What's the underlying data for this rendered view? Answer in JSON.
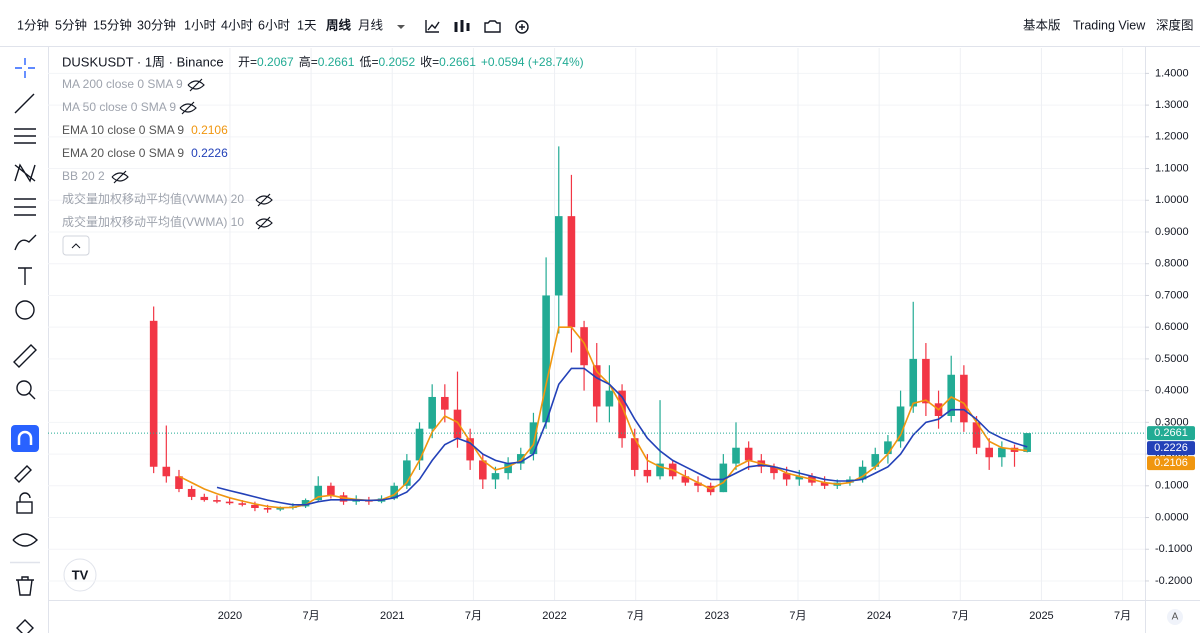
{
  "toolbar": {
    "intervals": [
      "1分钟",
      "5分钟",
      "15分钟",
      "30分钟",
      "1小时",
      "4小时",
      "6小时",
      "1天",
      "周线",
      "月线"
    ],
    "active": 8,
    "views": [
      "基本版",
      "Trading View",
      "深度图"
    ]
  },
  "chart_data": {
    "type": "candlestick",
    "title": "DUSKUSDT · 1周 · Binance",
    "ohlc_labels": [
      "开=",
      "高=",
      "低=",
      "收="
    ],
    "change": "+0.0594 (+28.74%)",
    "hidden_indicators": [
      "MA 200 close 0 SMA 9",
      "MA 50 close 0 SMA 9",
      "BB 20 2",
      "成交量加权移动平均值(VWMA) 20",
      "成交量加权移动平均值(VWMA) 10"
    ],
    "up_color": "#22ab94",
    "down_color": "#f23645",
    "x": [
      2019.53,
      2019.608,
      2019.686,
      2019.764,
      2019.842,
      2019.92,
      2019.998,
      2020.076,
      2020.154,
      2020.232,
      2020.31,
      2020.388,
      2020.466,
      2020.544,
      2020.622,
      2020.7,
      2020.778,
      2020.856,
      2020.934,
      2021.012,
      2021.09,
      2021.168,
      2021.246,
      2021.324,
      2021.402,
      2021.48,
      2021.558,
      2021.636,
      2021.714,
      2021.792,
      2021.87,
      2021.948,
      2022.026,
      2022.104,
      2022.182,
      2022.26,
      2022.338,
      2022.416,
      2022.494,
      2022.572,
      2022.65,
      2022.728,
      2022.806,
      2022.884,
      2022.962,
      2023.04,
      2023.118,
      2023.196,
      2023.274,
      2023.352,
      2023.43,
      2023.508,
      2023.586,
      2023.664,
      2023.742,
      2023.82,
      2023.898,
      2023.976,
      2024.054,
      2024.132,
      2024.21,
      2024.288,
      2024.366,
      2024.444,
      2024.522,
      2024.6,
      2024.678,
      2024.756,
      2024.834,
      2024.912
    ],
    "open": [
      0.62,
      0.16,
      0.13,
      0.09,
      0.065,
      0.055,
      0.05,
      0.045,
      0.04,
      0.03,
      0.025,
      0.03,
      0.035,
      0.055,
      0.1,
      0.07,
      0.05,
      0.055,
      0.05,
      0.06,
      0.1,
      0.18,
      0.28,
      0.38,
      0.34,
      0.25,
      0.18,
      0.12,
      0.14,
      0.17,
      0.2,
      0.3,
      0.7,
      0.95,
      0.6,
      0.48,
      0.35,
      0.4,
      0.25,
      0.15,
      0.13,
      0.17,
      0.13,
      0.11,
      0.1,
      0.08,
      0.17,
      0.22,
      0.18,
      0.16,
      0.14,
      0.12,
      0.13,
      0.11,
      0.1,
      0.11,
      0.12,
      0.16,
      0.2,
      0.24,
      0.35,
      0.5,
      0.36,
      0.32,
      0.45,
      0.3,
      0.22,
      0.19,
      0.22,
      0.2067
    ],
    "high": [
      0.665,
      0.29,
      0.15,
      0.1,
      0.075,
      0.07,
      0.06,
      0.055,
      0.05,
      0.04,
      0.035,
      0.045,
      0.06,
      0.13,
      0.11,
      0.08,
      0.07,
      0.065,
      0.07,
      0.11,
      0.2,
      0.3,
      0.42,
      0.42,
      0.46,
      0.28,
      0.2,
      0.16,
      0.19,
      0.22,
      0.33,
      0.82,
      1.17,
      1.08,
      0.62,
      0.55,
      0.48,
      0.42,
      0.28,
      0.2,
      0.37,
      0.18,
      0.15,
      0.13,
      0.11,
      0.2,
      0.3,
      0.24,
      0.2,
      0.17,
      0.16,
      0.15,
      0.14,
      0.13,
      0.12,
      0.13,
      0.18,
      0.22,
      0.26,
      0.4,
      0.68,
      0.55,
      0.4,
      0.51,
      0.48,
      0.32,
      0.25,
      0.24,
      0.23,
      0.2661
    ],
    "low": [
      0.14,
      0.11,
      0.08,
      0.055,
      0.05,
      0.045,
      0.04,
      0.035,
      0.02,
      0.015,
      0.02,
      0.025,
      0.03,
      0.05,
      0.06,
      0.04,
      0.04,
      0.04,
      0.045,
      0.055,
      0.09,
      0.15,
      0.25,
      0.3,
      0.22,
      0.15,
      0.09,
      0.09,
      0.12,
      0.15,
      0.18,
      0.28,
      0.58,
      0.52,
      0.4,
      0.3,
      0.3,
      0.22,
      0.13,
      0.11,
      0.12,
      0.12,
      0.1,
      0.08,
      0.07,
      0.08,
      0.15,
      0.15,
      0.14,
      0.12,
      0.1,
      0.1,
      0.1,
      0.09,
      0.09,
      0.1,
      0.11,
      0.15,
      0.17,
      0.22,
      0.33,
      0.32,
      0.28,
      0.3,
      0.27,
      0.2,
      0.15,
      0.16,
      0.16,
      0.2052
    ],
    "close": [
      0.16,
      0.13,
      0.09,
      0.065,
      0.055,
      0.05,
      0.045,
      0.04,
      0.03,
      0.025,
      0.03,
      0.035,
      0.055,
      0.1,
      0.07,
      0.05,
      0.055,
      0.05,
      0.06,
      0.1,
      0.18,
      0.28,
      0.38,
      0.34,
      0.25,
      0.18,
      0.12,
      0.14,
      0.17,
      0.2,
      0.3,
      0.7,
      0.95,
      0.6,
      0.48,
      0.35,
      0.4,
      0.25,
      0.15,
      0.13,
      0.17,
      0.13,
      0.11,
      0.1,
      0.08,
      0.17,
      0.22,
      0.18,
      0.16,
      0.14,
      0.12,
      0.13,
      0.11,
      0.1,
      0.11,
      0.12,
      0.16,
      0.2,
      0.24,
      0.35,
      0.5,
      0.36,
      0.32,
      0.45,
      0.3,
      0.22,
      0.19,
      0.22,
      0.2067,
      0.2661
    ],
    "series": [
      {
        "name": "EMA 10 close 0 SMA 9",
        "color": "#f0960f",
        "values": [
          null,
          null,
          0.13,
          0.11,
          0.09,
          0.075,
          0.062,
          0.052,
          0.043,
          0.035,
          0.031,
          0.032,
          0.04,
          0.065,
          0.07,
          0.062,
          0.057,
          0.054,
          0.056,
          0.072,
          0.11,
          0.18,
          0.27,
          0.32,
          0.3,
          0.24,
          0.18,
          0.15,
          0.16,
          0.18,
          0.23,
          0.42,
          0.6,
          0.6,
          0.55,
          0.46,
          0.42,
          0.35,
          0.25,
          0.18,
          0.16,
          0.15,
          0.13,
          0.11,
          0.09,
          0.11,
          0.16,
          0.18,
          0.17,
          0.16,
          0.14,
          0.13,
          0.12,
          0.11,
          0.105,
          0.11,
          0.13,
          0.16,
          0.2,
          0.26,
          0.36,
          0.37,
          0.34,
          0.38,
          0.36,
          0.3,
          0.24,
          0.22,
          0.215,
          0.2106
        ]
      },
      {
        "name": "EMA 20 close 0 SMA 9",
        "color": "#2341b8",
        "values": [
          null,
          null,
          null,
          null,
          null,
          0.095,
          0.085,
          0.075,
          0.065,
          0.055,
          0.047,
          0.04,
          0.04,
          0.05,
          0.056,
          0.056,
          0.055,
          0.054,
          0.055,
          0.062,
          0.08,
          0.12,
          0.18,
          0.23,
          0.25,
          0.235,
          0.2,
          0.18,
          0.17,
          0.175,
          0.2,
          0.3,
          0.42,
          0.47,
          0.47,
          0.44,
          0.42,
          0.38,
          0.31,
          0.25,
          0.21,
          0.18,
          0.16,
          0.14,
          0.12,
          0.12,
          0.14,
          0.16,
          0.165,
          0.16,
          0.15,
          0.14,
          0.13,
          0.12,
          0.115,
          0.115,
          0.12,
          0.14,
          0.16,
          0.2,
          0.26,
          0.3,
          0.31,
          0.34,
          0.34,
          0.31,
          0.27,
          0.25,
          0.235,
          0.2226
        ]
      }
    ],
    "xlim": [
      2018.879,
      2025.638
    ],
    "xticks": [
      {
        "value": 2020,
        "label": "2020"
      },
      {
        "value": 2020.5,
        "label": "7月"
      },
      {
        "value": 2021,
        "label": "2021"
      },
      {
        "value": 2021.5,
        "label": "7月"
      },
      {
        "value": 2022,
        "label": "2022"
      },
      {
        "value": 2022.5,
        "label": "7月"
      },
      {
        "value": 2023,
        "label": "2023"
      },
      {
        "value": 2023.5,
        "label": "7月"
      },
      {
        "value": 2024,
        "label": "2024"
      },
      {
        "value": 2024.5,
        "label": "7月"
      },
      {
        "value": 2025,
        "label": "2025"
      },
      {
        "value": 2025.5,
        "label": "7月"
      }
    ],
    "ylim": [
      -0.26,
      1.48
    ],
    "yticks": [
      {
        "value": 1.4,
        "label": "1.4000"
      },
      {
        "value": 1.3,
        "label": "1.3000"
      },
      {
        "value": 1.2,
        "label": "1.2000"
      },
      {
        "value": 1.1,
        "label": "1.1000"
      },
      {
        "value": 1.0,
        "label": "1.0000"
      },
      {
        "value": 0.9,
        "label": "0.9000"
      },
      {
        "value": 0.8,
        "label": "0.8000"
      },
      {
        "value": 0.7,
        "label": "0.7000"
      },
      {
        "value": 0.6,
        "label": "0.6000"
      },
      {
        "value": 0.5,
        "label": "0.5000"
      },
      {
        "value": 0.4,
        "label": "0.4000"
      },
      {
        "value": 0.3,
        "label": "0.3000"
      },
      {
        "value": 0.2,
        "label": "0.2000"
      },
      {
        "value": 0.1,
        "label": "0.1000"
      },
      {
        "value": 0,
        "label": "0.0000"
      },
      {
        "value": -0.1,
        "label": "-0.1000"
      },
      {
        "value": -0.2,
        "label": "-0.2000"
      }
    ],
    "grid": true,
    "scale_mode": "A"
  }
}
